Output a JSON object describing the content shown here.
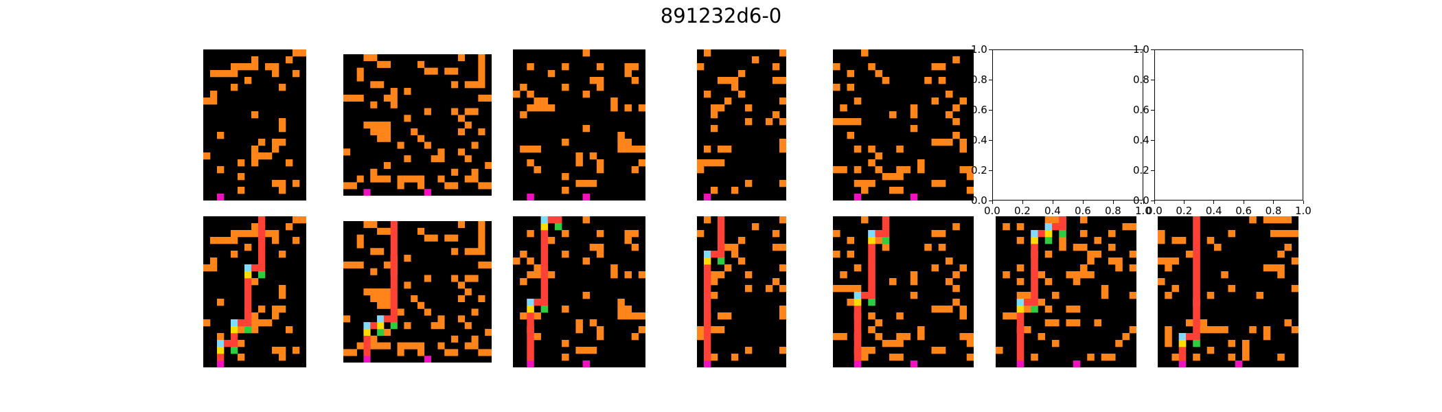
{
  "title": "891232d6-0",
  "colors": {
    "background": "#000000",
    "orange": "#ff851b",
    "magenta": "#f012be",
    "red": "#ff4136",
    "yellow": "#ffdc00",
    "cyan": "#7fdbff",
    "green": "#2ecc40"
  },
  "empty_axes": {
    "x_ticks": [
      "0.0",
      "0.2",
      "0.4",
      "0.6",
      "0.8",
      "1.0"
    ],
    "y_ticks": [
      "0.0",
      "0.2",
      "0.4",
      "0.6",
      "0.8",
      "1.0"
    ]
  },
  "grids": {
    "top": [
      {
        "rows": 22,
        "cols": 15
      },
      {
        "rows": 21,
        "cols": 22
      },
      {
        "rows": 22,
        "cols": 19
      },
      {
        "rows": 22,
        "cols": 13
      },
      {
        "rows": 22,
        "cols": 20
      }
    ],
    "bottom": [
      {
        "rows": 22,
        "cols": 15
      },
      {
        "rows": 21,
        "cols": 22
      },
      {
        "rows": 22,
        "cols": 19
      },
      {
        "rows": 22,
        "cols": 13
      },
      {
        "rows": 22,
        "cols": 20
      },
      {
        "rows": 22,
        "cols": 20
      },
      {
        "rows": 22,
        "cols": 20
      }
    ]
  }
}
